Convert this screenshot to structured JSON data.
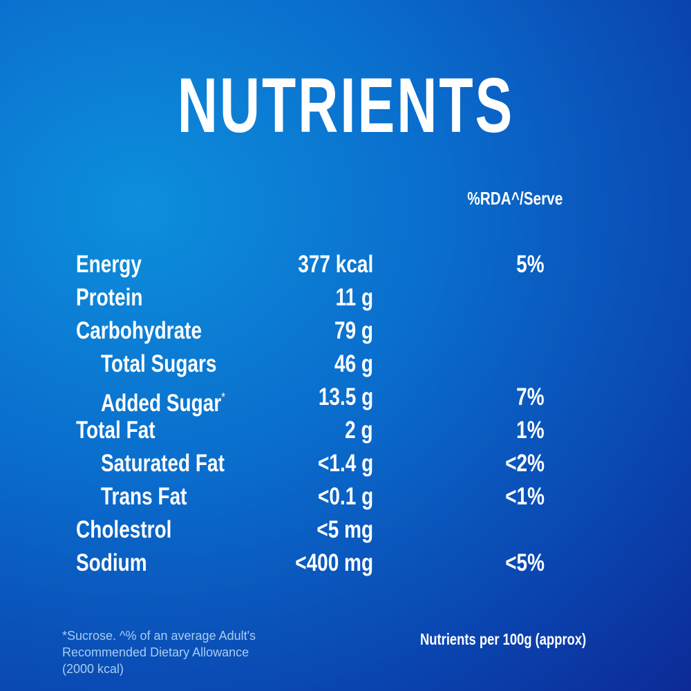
{
  "title": "NUTRIENTS",
  "column_header": "%RDA^/Serve",
  "rows": [
    {
      "name": "Energy",
      "amount": "377 kcal",
      "rda": "5%"
    },
    {
      "name": "Protein",
      "amount": "11 g"
    },
    {
      "name": "Carbohydrate",
      "amount": "79 g"
    },
    {
      "name": "Total Sugars",
      "amount": "46 g",
      "indent": true
    },
    {
      "name": "Added Sugar",
      "mark": "*",
      "amount": "13.5 g",
      "rda": "7%",
      "indent": true
    },
    {
      "name": "Total Fat",
      "amount": "2 g",
      "rda": "1%"
    },
    {
      "name": "Saturated Fat",
      "amount": "<1.4 g",
      "rda": "<2%",
      "indent": true
    },
    {
      "name": "Trans Fat",
      "amount": "<0.1 g",
      "rda": "<1%",
      "indent": true
    },
    {
      "name": "Cholestrol",
      "amount": "<5 mg"
    },
    {
      "name": "Sodium",
      "amount": "<400 mg",
      "rda": "<5%"
    }
  ],
  "footnote": [
    "*Sucrose. ^% of an average Adult's",
    "Recommended Dietary Allowance",
    "(2000 kcal)"
  ],
  "basis": "Nutrients per 100g (approx)"
}
